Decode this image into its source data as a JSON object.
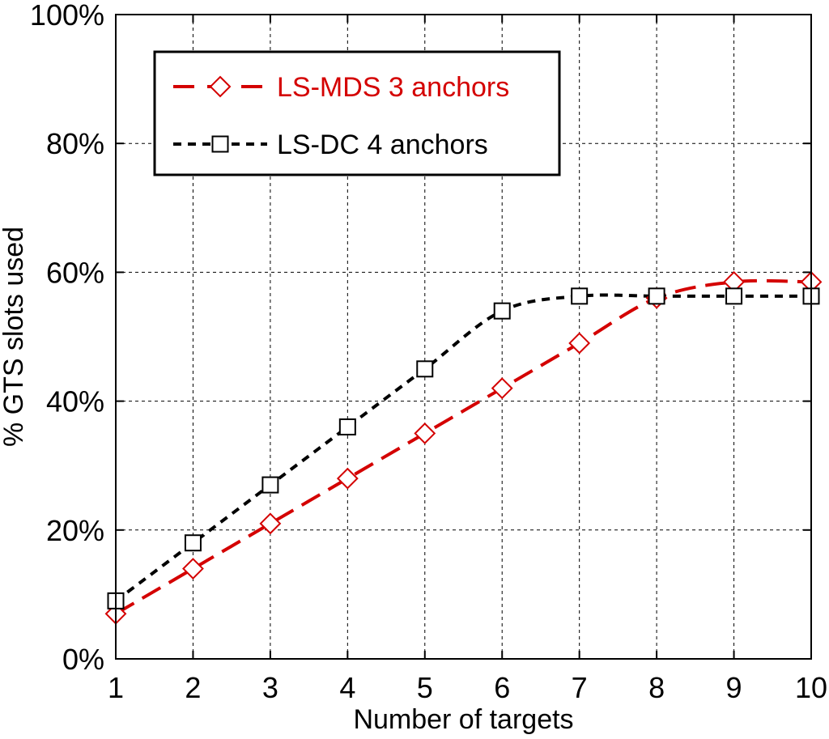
{
  "chart_data": {
    "type": "line",
    "xlabel": "Number of targets",
    "ylabel": "% GTS slots used",
    "x": [
      1,
      2,
      3,
      4,
      5,
      6,
      7,
      8,
      9,
      10
    ],
    "xlim": [
      1,
      10
    ],
    "ylim": [
      0,
      100
    ],
    "y_ticks": [
      "0%",
      "20%",
      "40%",
      "60%",
      "80%",
      "100%"
    ],
    "x_ticks": [
      "1",
      "2",
      "3",
      "4",
      "5",
      "6",
      "7",
      "8",
      "9",
      "10"
    ],
    "grid": true,
    "legend_position": "top-left",
    "series": [
      {
        "name": "LS-MDS 3 anchors",
        "values": [
          7,
          14,
          21,
          28,
          35,
          42,
          49,
          56,
          58.5,
          58.5
        ],
        "color": "#d40000",
        "marker": "diamond",
        "line_style": "long-dash"
      },
      {
        "name": "LS-DC 4 anchors",
        "values": [
          9,
          18,
          27,
          36,
          45,
          54,
          56.3,
          56.3,
          56.3,
          56.3
        ],
        "color": "#000000",
        "marker": "square",
        "line_style": "short-dash"
      }
    ]
  }
}
